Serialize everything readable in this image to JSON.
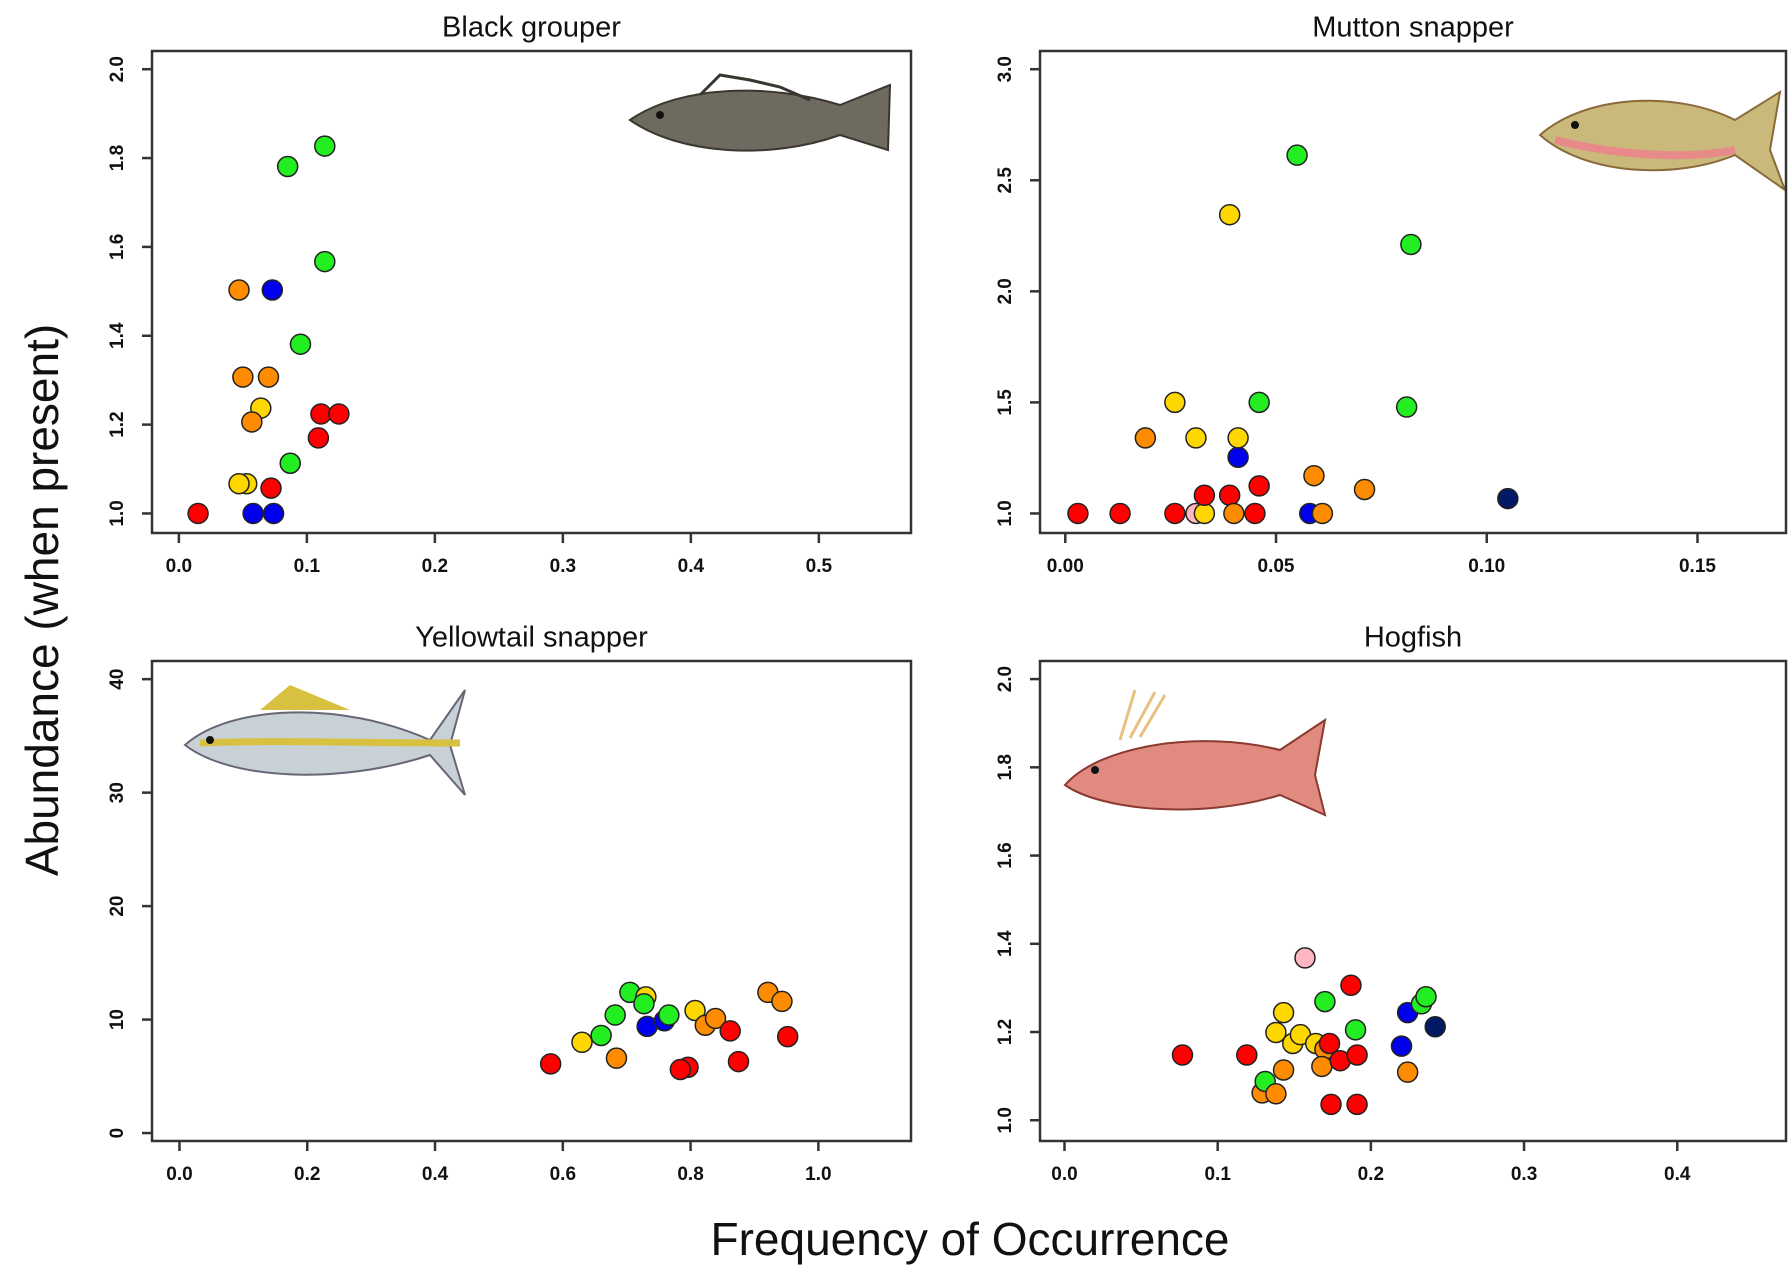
{
  "figure": {
    "ylabel": "Abundance (when present)",
    "xlabel": "Frequency of Occurrence"
  },
  "chart_data": [
    {
      "type": "line",
      "title": "Black grouper",
      "line_color": "#333333",
      "xlim": [
        -0.021,
        0.572
      ],
      "ylim": [
        0.956,
        2.041
      ],
      "xticks": [
        {
          "value": 0,
          "label": "0.0"
        },
        0.1,
        0.2,
        0.3,
        0.4,
        0.5
      ],
      "yticks": [
        {
          "value": 1,
          "label": "1.0"
        },
        1.2,
        1.4,
        1.6,
        1.8,
        {
          "value": 2,
          "label": "2.0"
        }
      ],
      "x": [
        0.015,
        0.047,
        0.05,
        0.064,
        0.057,
        0.07,
        0.053,
        0.047,
        0.058,
        0.074,
        0.072,
        0.073,
        0.085,
        0.114,
        0.114,
        0.095,
        0.087,
        0.109,
        0.111,
        0.125
      ],
      "values": [
        1.0,
        1.503,
        1.307,
        1.237,
        1.206,
        1.307,
        1.067,
        1.067,
        1.0,
        1.0,
        1.057,
        1.503,
        1.781,
        1.827,
        1.567,
        1.381,
        1.113,
        1.17,
        1.224,
        1.224
      ],
      "point_colors": [
        "#ff0000",
        "#ff8c00",
        "#ff8c00",
        "#ffd700",
        "#ff8c00",
        "#ff8c00",
        "#ffd700",
        "#ffd700",
        "#0000ee",
        "#0000ee",
        "#ff0000",
        "#0000ee",
        "#22ee22",
        "#22ee22",
        "#22ee22",
        "#22ee22",
        "#22ee22",
        "#ff0000",
        "#ff0000",
        "#ff0000"
      ]
    },
    {
      "type": "line",
      "title": "Mutton snapper",
      "line_color": "#333333",
      "xlim": [
        -0.006,
        0.171
      ],
      "ylim": [
        0.912,
        3.082
      ],
      "xticks": [
        {
          "value": 0,
          "label": "0.00"
        },
        0.05,
        {
          "value": 0.1,
          "label": "0.10"
        },
        0.15
      ],
      "yticks": [
        {
          "value": 1,
          "label": "1.0"
        },
        1.5,
        {
          "value": 2,
          "label": "2.0"
        },
        2.5,
        {
          "value": 3,
          "label": "3.0"
        }
      ],
      "x": [
        0.003,
        0.013,
        0.019,
        0.031,
        0.026,
        0.039,
        0.055,
        0.082,
        0.081,
        0.046,
        0.041,
        0.041,
        0.059,
        0.071,
        0.026,
        0.031,
        0.033,
        0.033,
        0.039,
        0.04,
        0.045,
        0.046,
        0.058,
        0.061,
        0.105
      ],
      "values": [
        1.0,
        1.0,
        1.34,
        1.34,
        1.5,
        2.345,
        2.613,
        2.211,
        1.479,
        1.5,
        1.253,
        1.34,
        1.17,
        1.108,
        1.0,
        1.0,
        1.0,
        1.082,
        1.082,
        1.0,
        1.0,
        1.124,
        1.0,
        1.0,
        1.067
      ],
      "point_colors": [
        "#ff0000",
        "#ff0000",
        "#ff8c00",
        "#ffd700",
        "#ffd700",
        "#ffd700",
        "#22ee22",
        "#22ee22",
        "#22ee22",
        "#22ee22",
        "#0000ee",
        "#ffd700",
        "#ff8c00",
        "#ff8c00",
        "#ff0000",
        "#ffb6c1",
        "#ffd700",
        "#ff0000",
        "#ff0000",
        "#ff8c00",
        "#ff0000",
        "#ff0000",
        "#0000ee",
        "#ff8c00",
        "#001a66"
      ]
    },
    {
      "type": "line",
      "title": "Yellowtail snapper",
      "line_color": "#333333",
      "xlim": [
        -0.043,
        1.145
      ],
      "ylim": [
        -0.7,
        41.6
      ],
      "xticks": [
        {
          "value": 0,
          "label": "0.0"
        },
        0.2,
        0.4,
        0.6,
        0.8,
        {
          "value": 1,
          "label": "1.0"
        }
      ],
      "yticks": [
        0,
        10,
        20,
        30,
        40
      ],
      "x": [
        0.581,
        0.63,
        0.66,
        0.684,
        0.682,
        0.705,
        0.73,
        0.727,
        0.732,
        0.759,
        0.766,
        0.807,
        0.823,
        0.839,
        0.862,
        0.921,
        0.943,
        0.952,
        0.875,
        0.796,
        0.784
      ],
      "values": [
        6.1,
        8.0,
        8.6,
        6.6,
        10.4,
        12.4,
        12.0,
        11.4,
        9.4,
        9.9,
        10.4,
        10.8,
        9.5,
        10.1,
        9.0,
        12.4,
        11.6,
        8.5,
        6.3,
        5.8,
        5.6
      ],
      "point_colors": [
        "#ff0000",
        "#ffd700",
        "#22ee22",
        "#ff8c00",
        "#22ee22",
        "#22ee22",
        "#ffd700",
        "#22ee22",
        "#0000ee",
        "#0000ee",
        "#22ee22",
        "#ffd700",
        "#ff8c00",
        "#ff8c00",
        "#ff0000",
        "#ff8c00",
        "#ff8c00",
        "#ff0000",
        "#ff0000",
        "#ff0000",
        "#ff0000"
      ]
    },
    {
      "type": "line",
      "title": "Hogfish",
      "line_color": "#333333",
      "xlim": [
        -0.016,
        0.471
      ],
      "ylim": [
        0.953,
        2.041
      ],
      "xticks": [
        {
          "value": 0,
          "label": "0.0"
        },
        0.1,
        0.2,
        0.3,
        0.4
      ],
      "yticks": [
        {
          "value": 1,
          "label": "1.0"
        },
        1.2,
        1.4,
        1.6,
        1.8,
        {
          "value": 2,
          "label": "2.0"
        }
      ],
      "x": [
        0.077,
        0.119,
        0.129,
        0.131,
        0.138,
        0.143,
        0.138,
        0.143,
        0.149,
        0.154,
        0.157,
        0.164,
        0.17,
        0.168,
        0.173,
        0.174,
        0.18,
        0.191,
        0.191,
        0.17,
        0.19,
        0.187,
        0.224,
        0.22,
        0.224,
        0.233,
        0.236,
        0.242
      ],
      "values": [
        1.148,
        1.148,
        1.062,
        1.088,
        1.06,
        1.114,
        1.199,
        1.244,
        1.174,
        1.194,
        1.368,
        1.174,
        1.161,
        1.122,
        1.174,
        1.036,
        1.135,
        1.148,
        1.036,
        1.269,
        1.205,
        1.306,
        1.109,
        1.168,
        1.244,
        1.264,
        1.28,
        1.212
      ],
      "point_colors": [
        "#ff0000",
        "#ff0000",
        "#ff8c00",
        "#22ee22",
        "#ff8c00",
        "#ff8c00",
        "#ffd700",
        "#ffd700",
        "#ffd700",
        "#ffd700",
        "#ffb6c1",
        "#ffd700",
        "#ff8c00",
        "#ff8c00",
        "#ff0000",
        "#ff0000",
        "#ff0000",
        "#ff0000",
        "#ff0000",
        "#22ee22",
        "#22ee22",
        "#ff0000",
        "#ff8c00",
        "#0000ee",
        "#0000ee",
        "#22ee22",
        "#22ee22",
        "#001a66"
      ]
    }
  ]
}
